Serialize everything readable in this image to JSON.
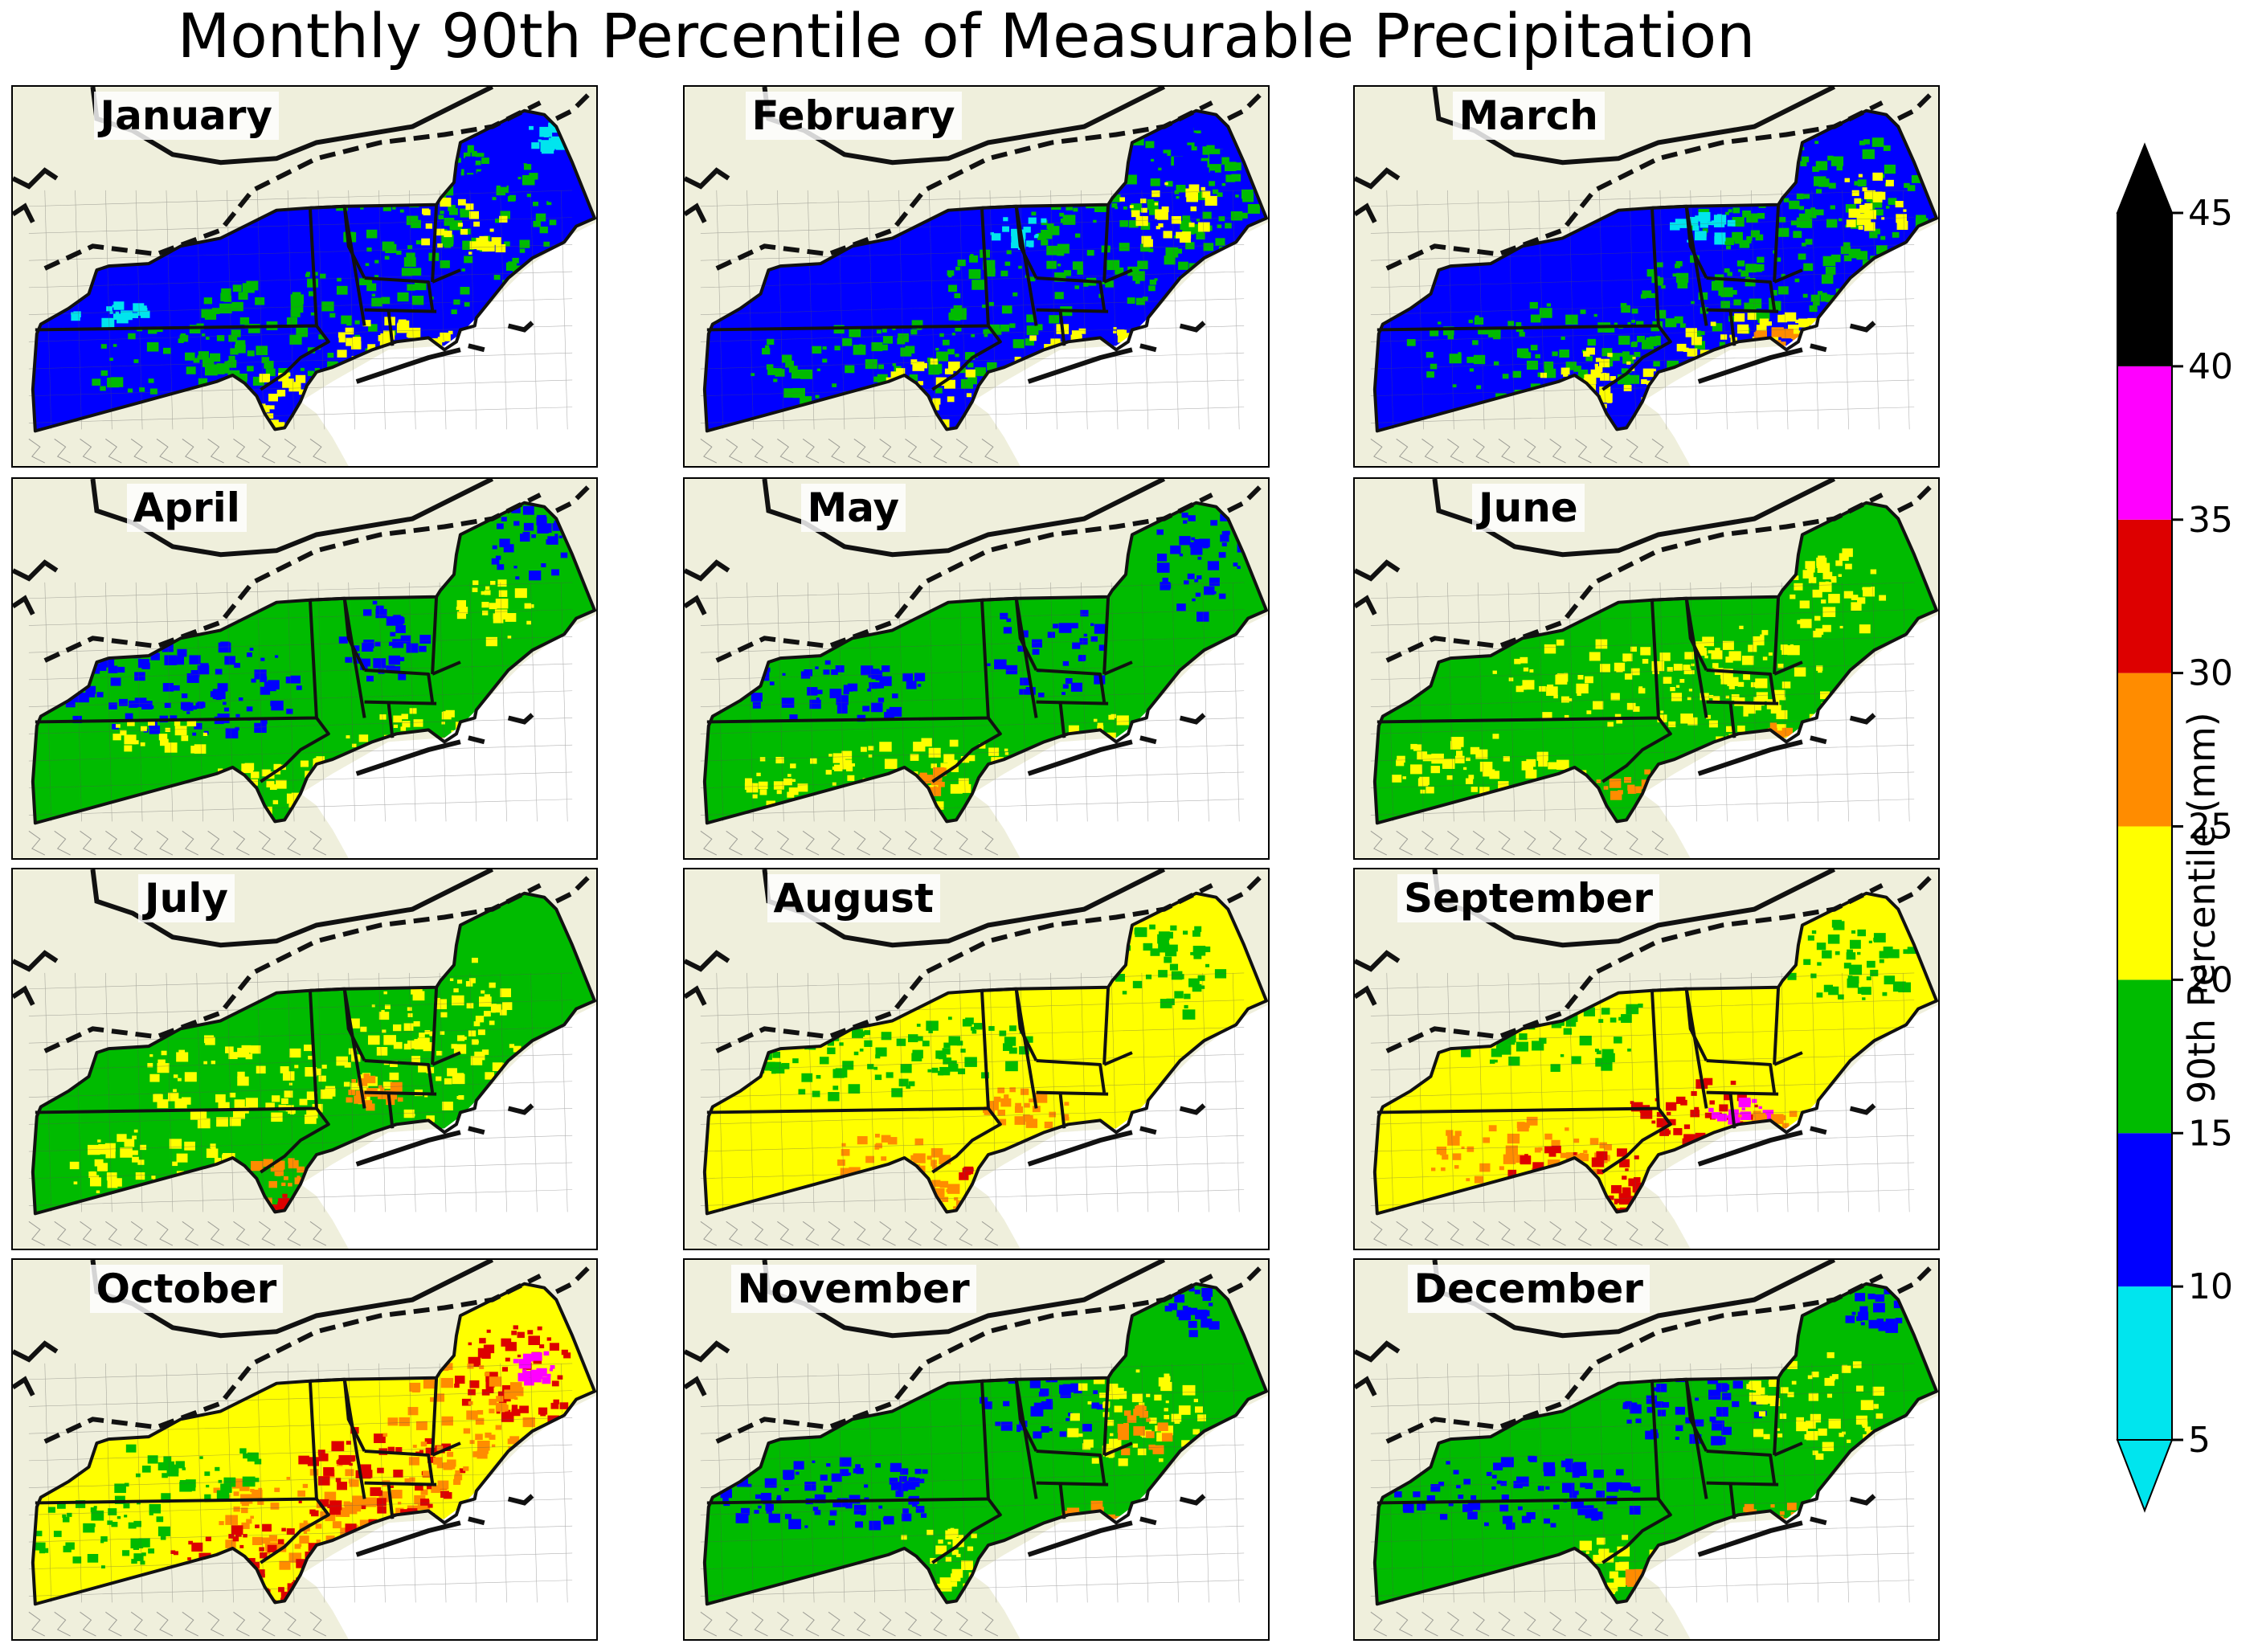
{
  "title": "Monthly 90th Percentile of Measurable Precipitation",
  "panels": [
    {
      "month": "January",
      "profile": "jan"
    },
    {
      "month": "February",
      "profile": "feb"
    },
    {
      "month": "March",
      "profile": "mar"
    },
    {
      "month": "April",
      "profile": "apr"
    },
    {
      "month": "May",
      "profile": "may"
    },
    {
      "month": "June",
      "profile": "jun"
    },
    {
      "month": "July",
      "profile": "jul"
    },
    {
      "month": "August",
      "profile": "aug"
    },
    {
      "month": "September",
      "profile": "sep"
    },
    {
      "month": "October",
      "profile": "oct"
    },
    {
      "month": "November",
      "profile": "nov"
    },
    {
      "month": "December",
      "profile": "dec"
    }
  ],
  "colorbar": {
    "label": "90th Percentile (mm)",
    "ticks": [
      "5",
      "10",
      "15",
      "20",
      "25",
      "30",
      "35",
      "40",
      "45"
    ],
    "bins": [
      {
        "min": 5,
        "max": 10,
        "color": "#00e5ee"
      },
      {
        "min": 10,
        "max": 15,
        "color": "#0000ff"
      },
      {
        "min": 15,
        "max": 20,
        "color": "#00bb00"
      },
      {
        "min": 20,
        "max": 25,
        "color": "#ffff00"
      },
      {
        "min": 25,
        "max": 30,
        "color": "#ff8c00"
      },
      {
        "min": 30,
        "max": 35,
        "color": "#dd0000"
      },
      {
        "min": 35,
        "max": 40,
        "color": "#ff00ff"
      },
      {
        "min": 40,
        "max": 45,
        "color": "#000000"
      }
    ],
    "extend_low_color": "#00e5ee",
    "extend_high_color": "#000000"
  },
  "colors": {
    "land_background": "#efefdc",
    "ocean": "#ffffff",
    "cyan": "#00e5ee",
    "blue": "#0000ff",
    "green": "#00bb00",
    "yellow": "#ffff00",
    "orange": "#ff8c00",
    "red": "#dd0000",
    "magenta": "#ff00ff"
  }
}
